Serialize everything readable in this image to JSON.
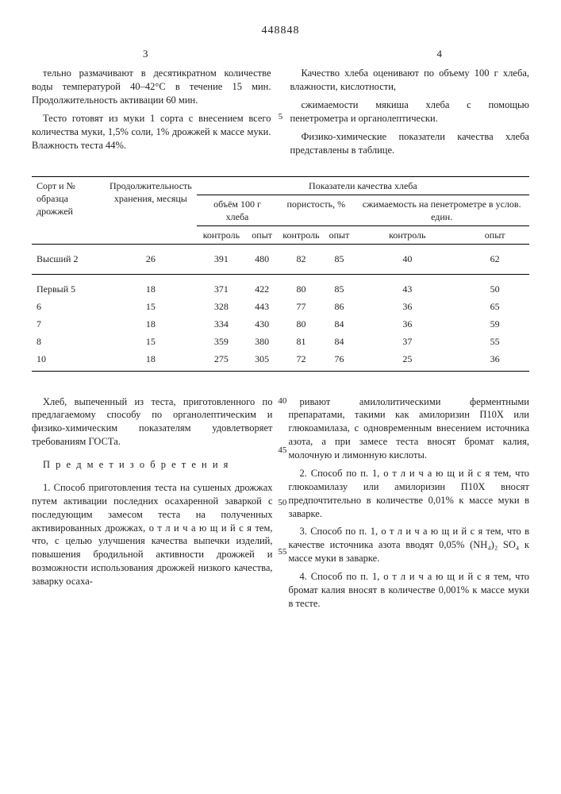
{
  "doc_number": "448848",
  "page_left": "3",
  "page_right": "4",
  "top_left_paras": [
    "тельно размачивают в десятикратном количестве воды температурой 40–42°С в течение 15 мин. Продолжительность активации 60 мин.",
    "Тесто готовят из муки 1 сорта с внесением всего количества муки, 1,5% соли, 1% дрожжей к массе муки. Влажность теста 44%."
  ],
  "top_right_paras": [
    "Качество хлеба оценивают по объему 100 г хлеба, влажности, кислотности,",
    "сжимаемости мякиша хлеба с помощью пенетрометра и органолептически.",
    "Физико-химические показатели качества хлеба представлены в таблице."
  ],
  "line5": "5",
  "table": {
    "h_sort": "Сорт и № образца дрожжей",
    "h_dur": "Продолжительность хранения, месяцы",
    "h_quality": "Показатели качества хлеба",
    "h_vol": "объём 100 г хлеба",
    "h_por": "пористость, %",
    "h_squeeze": "сжимаемость на пенетрометре в услов. един.",
    "h_ctrl": "контроль",
    "h_exp": "опыт",
    "rows": [
      [
        "Высший 2",
        "26",
        "391",
        "480",
        "82",
        "85",
        "40",
        "62"
      ],
      [
        "Первый 5",
        "18",
        "371",
        "422",
        "80",
        "85",
        "43",
        "50"
      ],
      [
        "6",
        "15",
        "328",
        "443",
        "77",
        "86",
        "36",
        "65"
      ],
      [
        "7",
        "18",
        "334",
        "430",
        "80",
        "84",
        "36",
        "59"
      ],
      [
        "8",
        "15",
        "359",
        "380",
        "81",
        "84",
        "37",
        "55"
      ],
      [
        "10",
        "18",
        "275",
        "305",
        "72",
        "76",
        "25",
        "36"
      ]
    ]
  },
  "lower_left": [
    "Хлеб, выпеченный из теста, приготовленного по предлагаемому способу по органолептическим и физико-химическим показателям удовлетворяет требованиям ГОСТа.",
    "П р е д м е т  и з о б р е т е н и я",
    "1. Способ приготовления теста на сушеных дрожжах путем активации последних осахаренной заваркой с последующим замесом теста на полученных активированных дрожжах, о т л и ч а ю щ и й с я тем, что, с целью улучшения качества выпечки изделий, повышения бродильной активности дрожжей и возможности использования дрожжей низкого качества, заварку осаха-"
  ],
  "lower_right": [
    "ривают амилолитическими ферментными препаратами, такими как амилоризин П10Х или глюкоамилаза, с одновременным внесением источника азота, а при замесе теста вносят бромат калия, молочную и лимонную кислоты.",
    "2. Способ по п. 1, о т л и ч а ю щ и й с я тем, что глюкоамилазу или амилоризин П10Х вносят предпочтительно в количестве 0,01% к массе муки в заварке.",
    "3. Способ по п. 1, о т л и ч а ю щ и й с я тем, что в качестве источника азота вводят 0,05% (NH₄)₂ SO₄ к массе муки в заварке.",
    "4. Способ по п. 1, о т л и ч а ю щ и й с я тем, что бромат калия вносят в количестве 0,001% к массе муки в тесте."
  ],
  "ln40": "40",
  "ln45": "45",
  "ln50": "50",
  "ln55": "55"
}
